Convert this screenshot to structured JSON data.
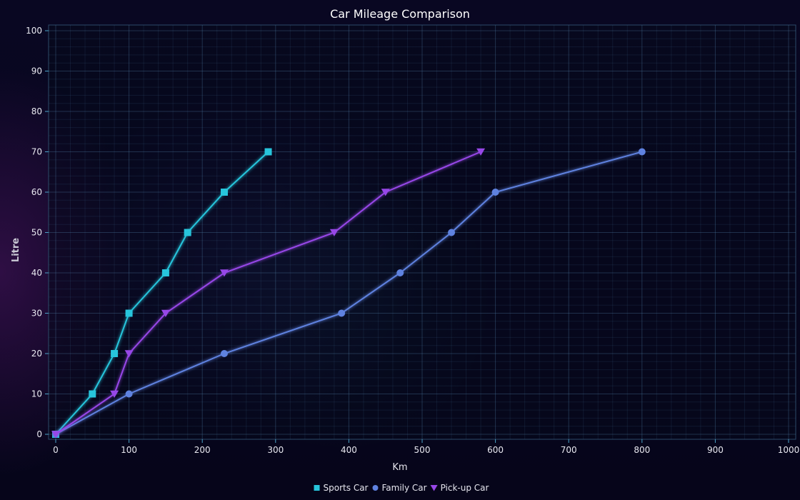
{
  "chart_data": {
    "type": "line",
    "title": "Car Mileage Comparison",
    "xlabel": "Km",
    "ylabel": "Litre",
    "xlim": [
      0,
      1000
    ],
    "ylim": [
      0,
      100
    ],
    "x_ticks": [
      0,
      100,
      200,
      300,
      400,
      500,
      600,
      700,
      800,
      900,
      1000
    ],
    "y_ticks": [
      0,
      10,
      20,
      30,
      40,
      50,
      60,
      70,
      80,
      90,
      100
    ],
    "grid": true,
    "legend_position": "bottom-center",
    "series": [
      {
        "name": "Sports Car",
        "marker": "square",
        "color": "#27c5dc",
        "points": [
          [
            0,
            0
          ],
          [
            50,
            10
          ],
          [
            80,
            20
          ],
          [
            100,
            30
          ],
          [
            150,
            40
          ],
          [
            180,
            50
          ],
          [
            230,
            60
          ],
          [
            290,
            70
          ]
        ]
      },
      {
        "name": "Family Car",
        "marker": "circle",
        "color": "#5f82e0",
        "points": [
          [
            0,
            0
          ],
          [
            100,
            10
          ],
          [
            230,
            20
          ],
          [
            390,
            30
          ],
          [
            470,
            40
          ],
          [
            540,
            50
          ],
          [
            600,
            60
          ],
          [
            800,
            70
          ]
        ]
      },
      {
        "name": "Pick-up Car",
        "marker": "triangle-down",
        "color": "#9747e8",
        "points": [
          [
            0,
            0
          ],
          [
            80,
            10
          ],
          [
            100,
            20
          ],
          [
            150,
            30
          ],
          [
            230,
            40
          ],
          [
            380,
            50
          ],
          [
            450,
            60
          ],
          [
            580,
            70
          ]
        ]
      }
    ]
  }
}
